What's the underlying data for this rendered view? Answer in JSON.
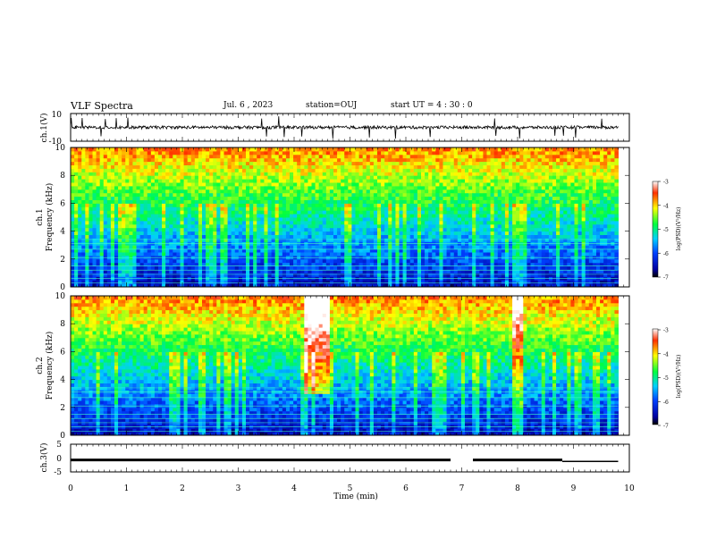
{
  "header": {
    "title": "VLF Spectra",
    "date": "Jul. 6 , 2023",
    "station": "station=OUJ",
    "start_ut": "start UT = 4 : 30 : 0"
  },
  "chart_data": [
    {
      "type": "line",
      "name": "ch1-waveform",
      "ylabel": "ch.1(V)",
      "ylim": [
        -10,
        10
      ],
      "yticks": [
        10,
        -10
      ],
      "baseline": 0
    },
    {
      "type": "heatmap",
      "name": "ch1-spectrogram",
      "ylabel": "Frequency (kHz)",
      "channel_label": "ch.1",
      "ylim": [
        0,
        10
      ],
      "yticks": [
        0,
        2,
        4,
        6,
        8,
        10
      ],
      "colorbar": {
        "label": "log(PSD)(V²/Hz)",
        "ticks": [
          -3,
          -4,
          -5,
          -6,
          -7
        ],
        "range": [
          -7,
          -3
        ]
      },
      "data_span_min": [
        0,
        9.8
      ]
    },
    {
      "type": "heatmap",
      "name": "ch2-spectrogram",
      "ylabel": "Frequency (kHz)",
      "channel_label": "ch.2",
      "ylim": [
        0,
        10
      ],
      "yticks": [
        0,
        2,
        4,
        6,
        8,
        10
      ],
      "colorbar": {
        "label": "log(PSD)(V²/Hz)",
        "ticks": [
          -3,
          -4,
          -5,
          -6,
          -7
        ],
        "range": [
          -7,
          -3
        ]
      },
      "data_span_min": [
        0,
        9.8
      ]
    },
    {
      "type": "line",
      "name": "ch3-waveform",
      "ylabel": "ch.3(V)",
      "ylim": [
        -5,
        5
      ],
      "yticks": [
        5,
        0,
        -5
      ],
      "segments": [
        {
          "x": [
            0,
            6.8
          ],
          "y": -0.7
        },
        {
          "x": [
            7.2,
            8.8
          ],
          "y": -0.7
        },
        {
          "x": [
            8.8,
            9.8
          ],
          "y": -1.2
        }
      ]
    }
  ],
  "time_axis": {
    "xlabel": "Time (min)",
    "xlim": [
      0,
      10
    ],
    "ticks": [
      0,
      1,
      2,
      3,
      4,
      5,
      6,
      7,
      8,
      9,
      10
    ]
  }
}
